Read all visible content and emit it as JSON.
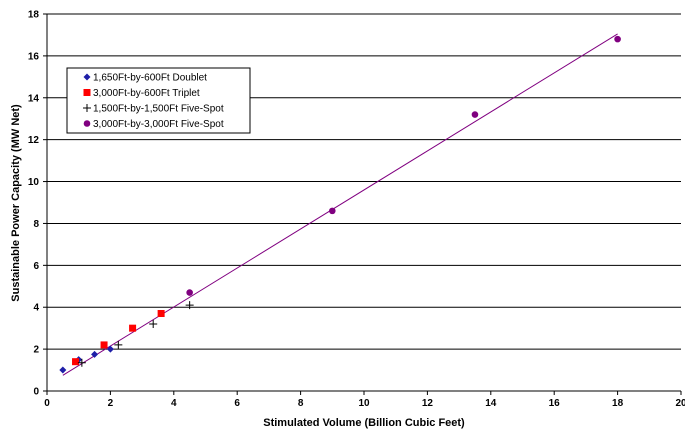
{
  "chart_data": {
    "type": "scatter",
    "title": "",
    "xlabel": "Stimulated Volume (Billion Cubic Feet)",
    "ylabel": "Sustainable Power Capacity (MW Net)",
    "xlim": [
      0,
      20
    ],
    "ylim": [
      0,
      18
    ],
    "x_ticks": [
      0,
      2,
      4,
      6,
      8,
      10,
      12,
      14,
      16,
      18,
      20
    ],
    "y_ticks": [
      0,
      2,
      4,
      6,
      8,
      10,
      12,
      14,
      16,
      18
    ],
    "x_tick_labels": [
      "0",
      "2",
      "4",
      "6",
      "8",
      "10",
      "12",
      "14",
      "16",
      "18",
      "20"
    ],
    "y_tick_labels": [
      "0",
      "2",
      "4",
      "6",
      "8",
      "10",
      "12",
      "14",
      "16",
      "18"
    ],
    "grid": "horizontal",
    "legend_position": "top-left",
    "series": [
      {
        "name": "1,650Ft-by-600Ft Doublet",
        "marker": "diamond",
        "color": "#1f1fa8",
        "points": [
          [
            0.5,
            1.0
          ],
          [
            1.0,
            1.5
          ],
          [
            1.5,
            1.75
          ],
          [
            2.0,
            2.0
          ]
        ]
      },
      {
        "name": "3,000Ft-by-600Ft Triplet",
        "marker": "square",
        "color": "#ff0000",
        "points": [
          [
            0.9,
            1.4
          ],
          [
            1.8,
            2.2
          ],
          [
            2.7,
            3.0
          ],
          [
            3.6,
            3.7
          ]
        ]
      },
      {
        "name": "1,500Ft-by-1,500Ft Five-Spot",
        "marker": "plus",
        "color": "#000000",
        "points": [
          [
            1.1,
            1.35
          ],
          [
            2.25,
            2.2
          ],
          [
            3.35,
            3.2
          ],
          [
            4.5,
            4.1
          ]
        ]
      },
      {
        "name": "3,000Ft-by-3,000Ft Five-Spot",
        "marker": "circle",
        "color": "#800080",
        "points": [
          [
            4.5,
            4.7
          ],
          [
            9.0,
            8.6
          ],
          [
            13.5,
            13.2
          ],
          [
            18.0,
            16.8
          ]
        ]
      }
    ],
    "trendline": {
      "type": "linear",
      "color": "#800080",
      "points": [
        [
          0.5,
          0.75
        ],
        [
          18.0,
          17.05
        ]
      ]
    }
  }
}
